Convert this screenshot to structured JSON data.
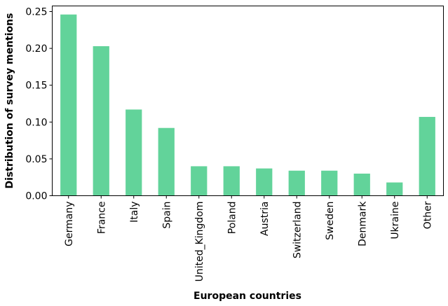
{
  "chart_data": {
    "type": "bar",
    "categories": [
      "Germany",
      "France",
      "Italy",
      "Spain",
      "United_Kingdom",
      "Poland",
      "Austria",
      "Switzerland",
      "Sweden",
      "Denmark",
      "Ukraine",
      "Other"
    ],
    "values": [
      0.246,
      0.203,
      0.117,
      0.092,
      0.04,
      0.04,
      0.037,
      0.034,
      0.034,
      0.03,
      0.018,
      0.107
    ],
    "title": "",
    "xlabel": "European countries",
    "ylabel": "Distribution of survey mentions",
    "ylim": [
      0,
      0.25
    ],
    "yticks": [
      "0.00",
      "0.05",
      "0.10",
      "0.15",
      "0.20",
      "0.25"
    ],
    "grid": false,
    "legend": "none",
    "bar_color": "#62d39a"
  }
}
